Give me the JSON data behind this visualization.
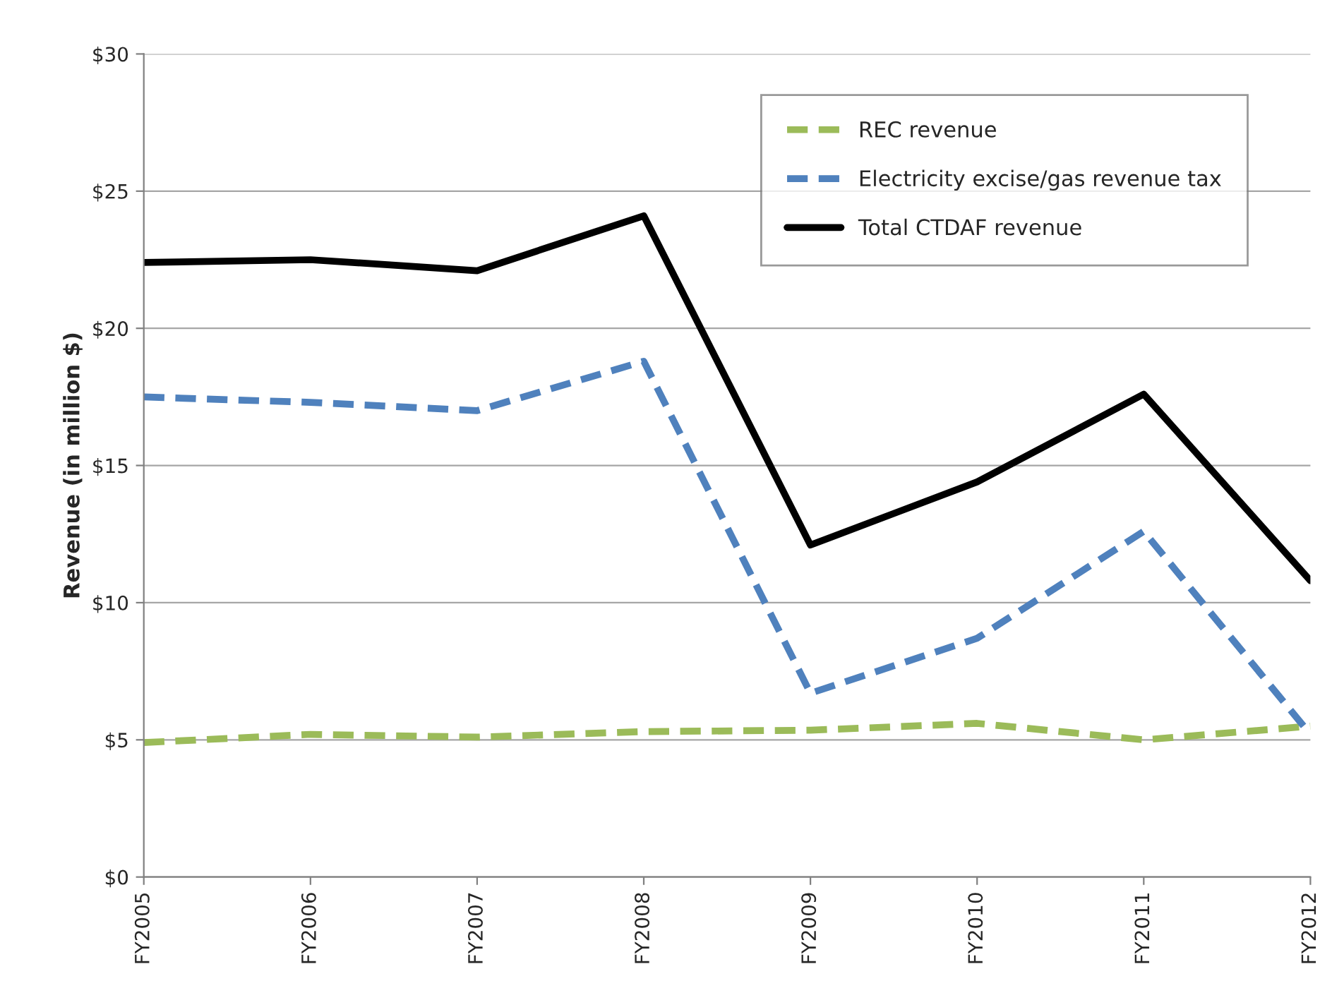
{
  "chart_data": {
    "type": "line",
    "ylabel": "Revenue (in million $)",
    "categories": [
      "FY2005",
      "FY2006",
      "FY2007",
      "FY2008",
      "FY2009",
      "FY2010",
      "FY2011",
      "FY2012"
    ],
    "series": [
      {
        "name": "REC revenue",
        "color": "#9bbb59",
        "line_style": "dashed",
        "values": [
          4.9,
          5.2,
          5.1,
          5.3,
          5.35,
          5.6,
          5.0,
          5.5
        ]
      },
      {
        "name": "Electricity excise/gas revenue tax",
        "color": "#4f81bd",
        "line_style": "dashed",
        "values": [
          17.5,
          17.3,
          17.0,
          18.8,
          6.7,
          8.7,
          12.6,
          5.2
        ]
      },
      {
        "name": "Total CTDAF revenue",
        "color": "#000000",
        "line_style": "solid",
        "values": [
          22.4,
          22.5,
          22.1,
          24.1,
          12.1,
          14.4,
          17.6,
          10.8
        ]
      }
    ],
    "ylim": [
      0,
      30
    ],
    "yticks": [
      {
        "value": 0,
        "label": "$0"
      },
      {
        "value": 5,
        "label": "$5"
      },
      {
        "value": 10,
        "label": "$10"
      },
      {
        "value": 15,
        "label": "$15"
      },
      {
        "value": 20,
        "label": "$20"
      },
      {
        "value": 25,
        "label": "$25"
      },
      {
        "value": 30,
        "label": "$30"
      }
    ],
    "grid": "y",
    "legend": "top right",
    "marker": "none"
  }
}
